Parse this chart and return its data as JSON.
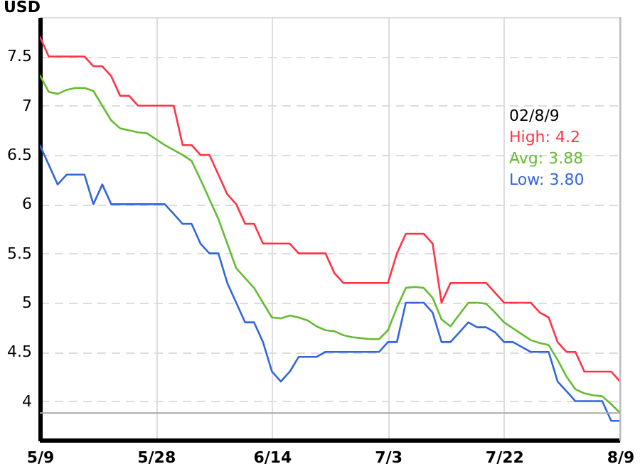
{
  "chart_data": {
    "type": "line",
    "ylabel": "USD",
    "categories": [
      "5/9",
      null,
      null,
      null,
      null,
      null,
      null,
      null,
      null,
      null,
      null,
      null,
      null,
      "5/28",
      null,
      null,
      null,
      null,
      null,
      null,
      null,
      null,
      null,
      null,
      null,
      null,
      "6/14",
      null,
      null,
      null,
      null,
      null,
      null,
      null,
      null,
      null,
      null,
      null,
      null,
      "7/3",
      null,
      null,
      null,
      null,
      null,
      null,
      null,
      null,
      null,
      null,
      null,
      null,
      "7/22",
      null,
      null,
      null,
      null,
      null,
      null,
      null,
      null,
      null,
      null,
      null,
      null,
      "8/9"
    ],
    "series": [
      {
        "color": "#ff3344",
        "values": [
          7.7,
          7.5,
          7.5,
          7.5,
          7.5,
          7.5,
          7.4,
          7.4,
          7.3,
          7.1,
          7.1,
          7.0,
          7.0,
          7.0,
          7.0,
          7.0,
          6.6,
          6.6,
          6.5,
          6.5,
          6.3,
          6.1,
          6.0,
          5.8,
          5.8,
          5.6,
          5.6,
          5.6,
          5.6,
          5.5,
          5.5,
          5.5,
          5.5,
          5.3,
          5.2,
          5.2,
          5.2,
          5.2,
          5.2,
          5.2,
          5.5,
          5.7,
          5.7,
          5.7,
          5.6,
          5.0,
          5.2,
          5.2,
          5.2,
          5.2,
          5.2,
          5.1,
          5.0,
          5.0,
          5.0,
          5.0,
          4.9,
          4.85,
          4.6,
          4.5,
          4.5,
          4.3,
          4.3,
          4.3,
          4.3,
          4.2
        ]
      },
      {
        "color": "#66bb33",
        "values": [
          7.31,
          7.14,
          7.12,
          7.16,
          7.18,
          7.18,
          7.15,
          7.0,
          6.85,
          6.77,
          6.75,
          6.73,
          6.72,
          6.66,
          6.6,
          6.55,
          6.5,
          6.44,
          6.25,
          6.05,
          5.85,
          5.6,
          5.35,
          5.25,
          5.15,
          5.0,
          4.85,
          4.84,
          4.87,
          4.85,
          4.82,
          4.76,
          4.72,
          4.71,
          4.67,
          4.65,
          4.64,
          4.63,
          4.63,
          4.72,
          4.95,
          5.15,
          5.16,
          5.15,
          5.05,
          4.83,
          4.76,
          4.88,
          5.0,
          5.0,
          4.99,
          4.9,
          4.8,
          4.74,
          4.68,
          4.62,
          4.59,
          4.57,
          4.42,
          4.25,
          4.12,
          4.08,
          4.06,
          4.05,
          3.97,
          3.88
        ]
      },
      {
        "color": "#3366dd",
        "values": [
          6.6,
          6.4,
          6.2,
          6.3,
          6.3,
          6.3,
          6.0,
          6.2,
          6.0,
          6.0,
          6.0,
          6.0,
          6.0,
          6.0,
          6.0,
          5.9,
          5.8,
          5.8,
          5.6,
          5.5,
          5.5,
          5.2,
          5.0,
          4.8,
          4.8,
          4.6,
          4.3,
          4.2,
          4.3,
          4.45,
          4.45,
          4.45,
          4.5,
          4.5,
          4.5,
          4.5,
          4.5,
          4.5,
          4.5,
          4.6,
          4.6,
          5.0,
          5.0,
          5.0,
          4.9,
          4.6,
          4.6,
          4.7,
          4.8,
          4.75,
          4.75,
          4.7,
          4.6,
          4.6,
          4.55,
          4.5,
          4.5,
          4.5,
          4.2,
          4.1,
          4.0,
          4.0,
          4.0,
          4.0,
          3.8,
          3.8
        ]
      }
    ],
    "ylim": [
      3.6,
      7.9
    ],
    "yticks": [
      4,
      4.5,
      5,
      5.5,
      6,
      6.5,
      7,
      7.5
    ],
    "ref_lines": [
      {
        "axis": "y",
        "value": 3.88,
        "color": "#aaaaaa"
      }
    ],
    "annotations": [
      "02/8/9",
      "High: 4.2",
      "Avg: 3.88",
      "Low: 3.80"
    ],
    "grid": true,
    "marker": "none",
    "line_style": "solid"
  }
}
